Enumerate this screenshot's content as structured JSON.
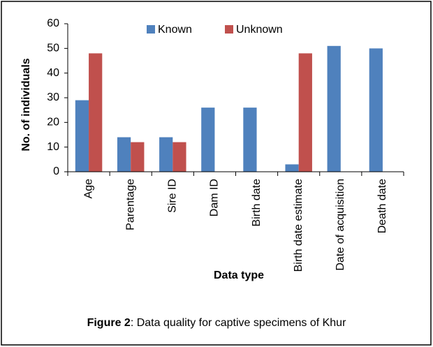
{
  "chart_data": {
    "type": "bar",
    "categories": [
      "Age",
      "Parentage",
      "Sire ID",
      "Dam ID",
      "Birth date",
      "Birth date estimate",
      "Date of acquisition",
      "Death date"
    ],
    "series": [
      {
        "name": "Known",
        "color": "#4f81bd",
        "values": [
          29,
          14,
          14,
          26,
          26,
          3,
          51,
          50
        ]
      },
      {
        "name": "Unknown",
        "color": "#c0504d",
        "values": [
          48,
          12,
          12,
          0,
          0,
          48,
          0,
          0
        ]
      }
    ],
    "ylim": [
      0,
      60
    ],
    "yticks": [
      0,
      10,
      20,
      30,
      40,
      50,
      60
    ],
    "y_label": "No. of individuals",
    "x_label": "Data type",
    "legend": "top",
    "grid": false,
    "caption_label": "Figure 2",
    "caption_text": ": Data quality for captive specimens of Khur"
  }
}
